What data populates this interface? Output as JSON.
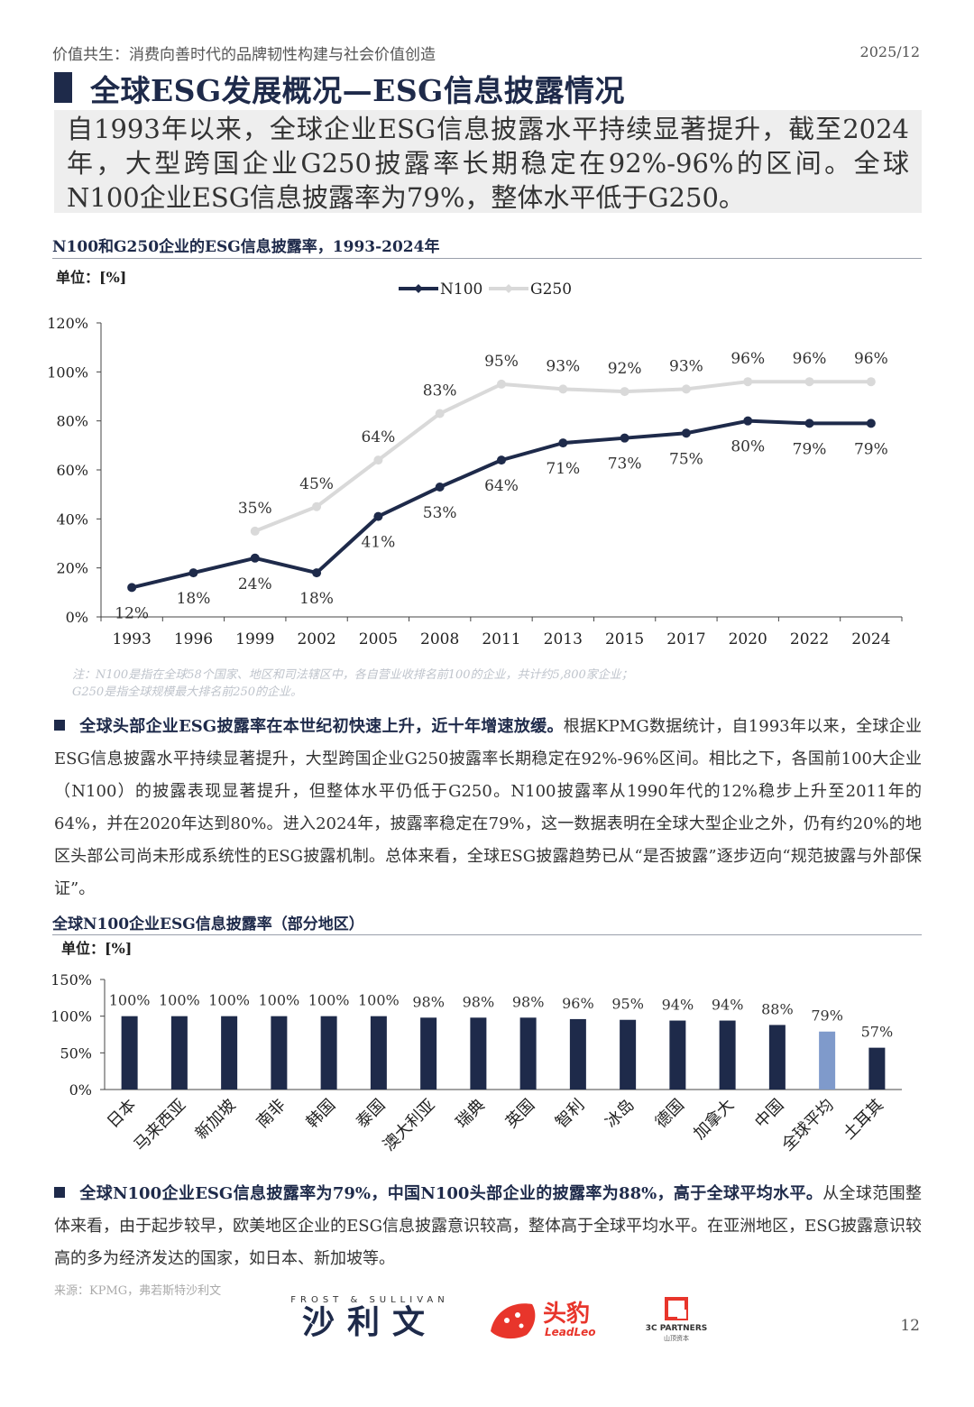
{
  "header": {
    "report_title": "价值共生：消费向善时代的品牌韧性构建与社会价值创造",
    "date": "2025/12"
  },
  "page_title": "全球ESG发展概况—ESG信息披露情况",
  "summary": "自1993年以来，全球企业ESG信息披露水平持续显著提升，截至2024年，大型跨国企业G250披露率长期稳定在92%-96%的区间。全球N100企业ESG信息披露率为79%，整体水平低于G250。",
  "chart1_title": "N100和G250企业的ESG信息披露率，1993-2024年",
  "chart1_unit": "单位：[%]",
  "chart_data": [
    {
      "type": "line",
      "title": "",
      "categories": [
        "1993",
        "1996",
        "1999",
        "2002",
        "2005",
        "2008",
        "2011",
        "2013",
        "2015",
        "2017",
        "2020",
        "2022",
        "2024"
      ],
      "series": [
        {
          "name": "N100",
          "color": "#1e2a4a",
          "values": [
            12,
            18,
            24,
            18,
            41,
            53,
            64,
            71,
            73,
            75,
            80,
            79,
            79
          ]
        },
        {
          "name": "G250",
          "color": "#d9d9d9",
          "values": [
            null,
            null,
            35,
            45,
            64,
            83,
            95,
            93,
            92,
            93,
            96,
            96,
            96
          ]
        }
      ],
      "y_ticks": [
        "0%",
        "20%",
        "40%",
        "60%",
        "80%",
        "100%",
        "120%"
      ],
      "ylim": [
        0,
        120
      ],
      "legend": "top-center",
      "grid": false
    },
    {
      "type": "bar",
      "title": "",
      "categories": [
        "日本",
        "马来西亚",
        "新加坡",
        "南非",
        "韩国",
        "泰国",
        "澳大利亚",
        "瑞典",
        "英国",
        "智利",
        "冰岛",
        "德国",
        "加拿大",
        "中国",
        "全球平均",
        "土耳其"
      ],
      "values": [
        100,
        100,
        100,
        100,
        100,
        100,
        98,
        98,
        98,
        96,
        95,
        94,
        94,
        88,
        79,
        57
      ],
      "labels": [
        "100%",
        "100%",
        "100%",
        "100%",
        "100%",
        "100%",
        "98%",
        "98%",
        "98%",
        "96%",
        "95%",
        "94%",
        "94%",
        "88%",
        "79%",
        "57%"
      ],
      "bar_color": "#1e2a4a",
      "highlight_color": "#7f9acb",
      "highlight_index": 14,
      "y_ticks": [
        "0%",
        "50%",
        "100%",
        "150%"
      ],
      "ylim": [
        0,
        150
      ],
      "grid": false
    }
  ],
  "chart1_note_1": "注：N100是指在全球58个国家、地区和司法辖区中，各自营业收排名前100的企业，共计约5,800家企业；",
  "chart1_note_2": "G250是指全球规模最大排名前250的企业。",
  "para1_lead": "全球头部企业ESG披露率在本世纪初快速上升，近十年增速放缓。",
  "para1_body": "根据KPMG数据统计，自1993年以来，全球企业ESG信息披露水平持续显著提升，大型跨国企业G250披露率长期稳定在92%-96%区间。相比之下，各国前100大企业（N100）的披露表现显著提升，但整体水平仍低于G250。N100披露率从1990年代的12%稳步上升至2011年的64%，并在2020年达到80%。进入2024年，披露率稳定在79%，这一数据表明在全球大型企业之外，仍有约20%的地区头部公司尚未形成系统性的ESG披露机制。总体来看，全球ESG披露趋势已从“是否披露”逐步迈向“规范披露与外部保证”。",
  "chart2_title": "全球N100企业ESG信息披露率（部分地区）",
  "chart2_unit": "单位：[%]",
  "para2_lead": "全球N100企业ESG信息披露率为79%，中国N100头部企业的披露率为88%，高于全球平均水平。",
  "para2_body": "从全球范围整体来看，由于起步较早，欧美地区企业的ESG信息披露意识较高，整体高于全球平均水平。在亚洲地区，ESG披露意识较高的多为经济发达的国家，如日本、新加坡等。",
  "source": "来源：KPMG，弗若斯特沙利文",
  "logos": {
    "frost_top": "FROST & SULLIVAN",
    "frost_cn": "沙利文",
    "leadleo_cn": "头豹",
    "leadleo_en": "LeadLeo",
    "partners_en": "3C PARTNERS",
    "partners_cn": "山顶资本"
  },
  "page_number": "12"
}
